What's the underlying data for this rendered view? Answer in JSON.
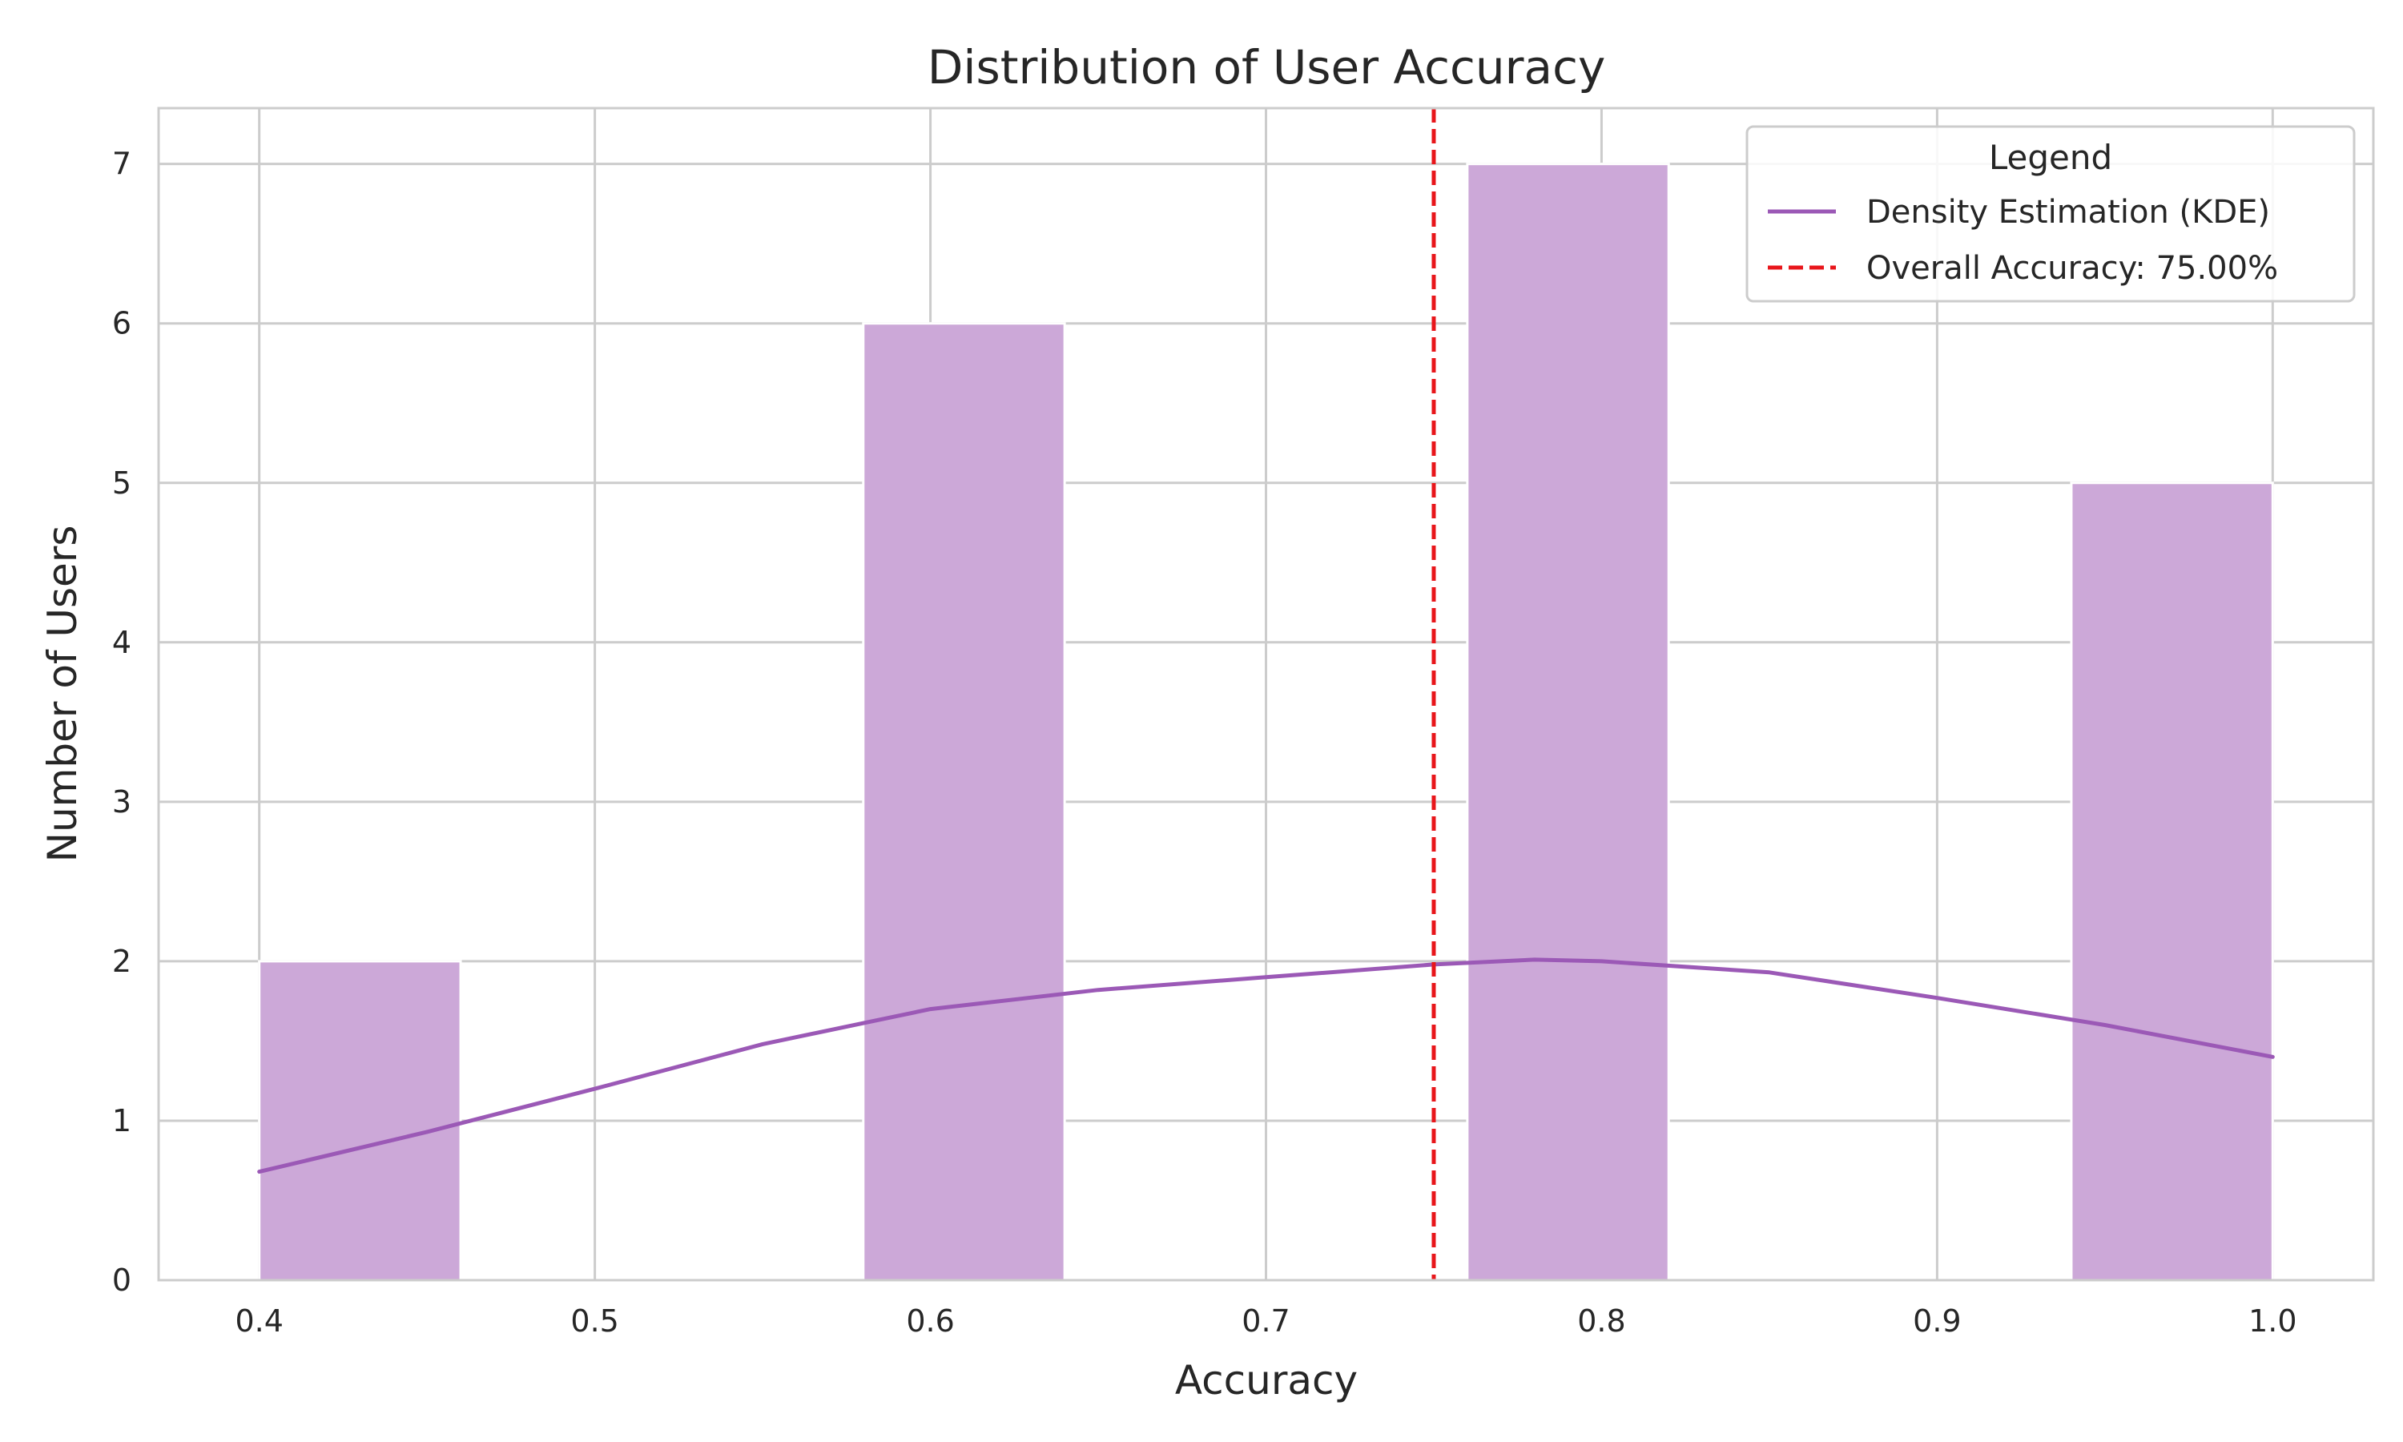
{
  "chart_data": {
    "type": "bar",
    "title": "Distribution of User Accuracy",
    "xlabel": "Accuracy",
    "ylabel": "Number of Users",
    "xlim": [
      0.37,
      1.03
    ],
    "ylim": [
      0,
      7.35
    ],
    "xticks": [
      "0.4",
      "0.5",
      "0.6",
      "0.7",
      "0.8",
      "0.9",
      "1.0"
    ],
    "yticks": [
      "0",
      "1",
      "2",
      "3",
      "4",
      "5",
      "6",
      "7"
    ],
    "grid": true,
    "histogram": {
      "bins": [
        {
          "start": 0.4,
          "end": 0.46,
          "count": 2
        },
        {
          "start": 0.46,
          "end": 0.52,
          "count": 0
        },
        {
          "start": 0.52,
          "end": 0.58,
          "count": 0
        },
        {
          "start": 0.58,
          "end": 0.64,
          "count": 6
        },
        {
          "start": 0.64,
          "end": 0.7,
          "count": 0
        },
        {
          "start": 0.7,
          "end": 0.76,
          "count": 0
        },
        {
          "start": 0.76,
          "end": 0.82,
          "count": 7
        },
        {
          "start": 0.82,
          "end": 0.88,
          "count": 0
        },
        {
          "start": 0.88,
          "end": 0.94,
          "count": 0
        },
        {
          "start": 0.94,
          "end": 1.0,
          "count": 5
        }
      ],
      "color": "#cca8d8"
    },
    "series": [
      {
        "name": "Density Estimation (KDE)",
        "type": "line",
        "color": "#9b59b6",
        "x": [
          0.4,
          0.45,
          0.5,
          0.55,
          0.6,
          0.65,
          0.7,
          0.75,
          0.78,
          0.8,
          0.85,
          0.9,
          0.95,
          1.0
        ],
        "y": [
          0.68,
          0.93,
          1.2,
          1.48,
          1.7,
          1.82,
          1.9,
          1.98,
          2.01,
          2.0,
          1.93,
          1.77,
          1.6,
          1.4
        ]
      }
    ],
    "reference_line": {
      "x": 0.75,
      "color": "#e8161b",
      "style": "dashed",
      "label": "Overall Accuracy: 75.00%"
    },
    "legend": {
      "title": "Legend",
      "position": "top-right",
      "entries": [
        "Density Estimation (KDE)",
        "Overall Accuracy: 75.00%"
      ]
    }
  }
}
